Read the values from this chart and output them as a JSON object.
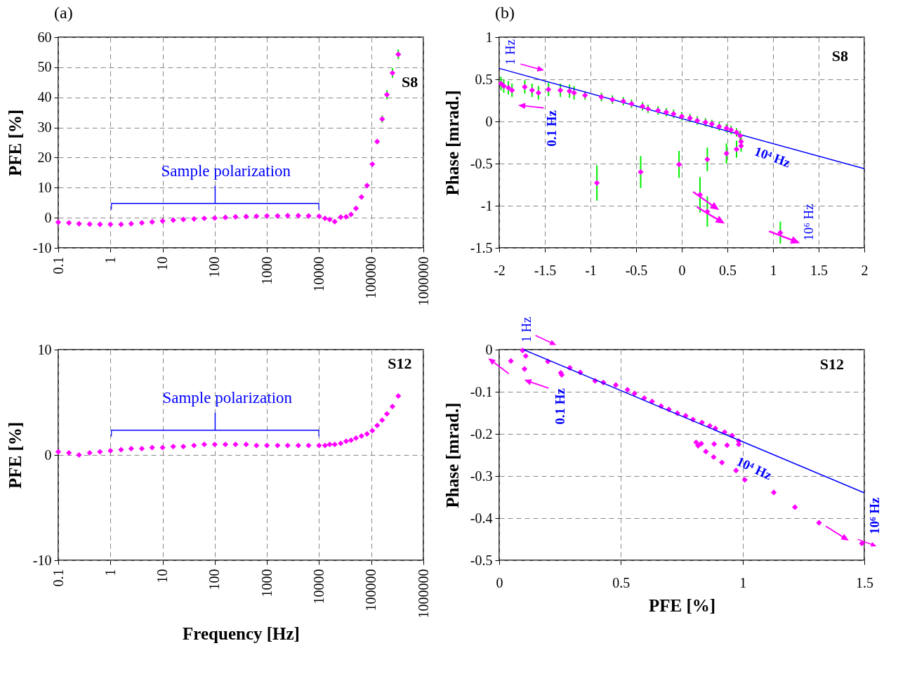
{
  "chart_data": [
    {
      "type": "scatter",
      "title": "(a)",
      "ylabel": "PFE [%]",
      "log": "x",
      "grid": true,
      "marker": "diamond",
      "xlim": [
        0.1,
        1000000
      ],
      "xticks": [
        0.1,
        1,
        10,
        100,
        1000,
        10000,
        100000,
        1000000
      ],
      "ylim": [
        -10,
        60
      ],
      "yticks": [
        -10,
        0,
        10,
        20,
        30,
        40,
        50,
        60
      ],
      "x": [
        0.1,
        0.16,
        0.25,
        0.4,
        0.63,
        1,
        1.6,
        2.5,
        4,
        6.3,
        10,
        16,
        25,
        40,
        63,
        100,
        160,
        250,
        400,
        630,
        1000,
        1600,
        2500,
        4000,
        6300,
        10000,
        13000,
        16000,
        20000,
        26000,
        33000,
        41000,
        51000,
        65000,
        83000,
        105000,
        130000,
        162000,
        200000,
        255000,
        330000
      ],
      "series": [
        {
          "color": "#ff00ff",
          "values": [
            -1.5,
            -1.7,
            -2.0,
            -2.1,
            -2.2,
            -2.2,
            -2.2,
            -2.0,
            -1.7,
            -1.4,
            -1.1,
            -0.8,
            -0.6,
            -0.4,
            -0.2,
            -0.1,
            0.1,
            0.3,
            0.4,
            0.5,
            0.6,
            0.6,
            0.7,
            0.7,
            0.6,
            0.5,
            -0.2,
            -0.6,
            -1.3,
            0.2,
            0.3,
            1.1,
            3.1,
            6.9,
            10.7,
            17.8,
            25.3,
            32.8,
            40.9,
            48.1,
            54.3
          ],
          "errors": [
            null,
            null,
            null,
            null,
            null,
            null,
            null,
            null,
            null,
            null,
            null,
            null,
            null,
            null,
            null,
            null,
            null,
            null,
            null,
            null,
            null,
            null,
            null,
            null,
            null,
            null,
            null,
            null,
            null,
            null,
            null,
            null,
            null,
            null,
            null,
            null,
            null,
            1.2,
            1.5,
            1.6,
            1.6
          ]
        }
      ],
      "annotations": [
        "S8",
        "Sample polarization"
      ]
    },
    {
      "type": "scatter",
      "title": "(b)",
      "ylabel": "Phase [mrad.]",
      "grid": true,
      "marker": "diamond",
      "xlim": [
        -2,
        2
      ],
      "xticks": [
        -2,
        -1.5,
        -1,
        -0.5,
        0,
        0.5,
        1,
        1.5,
        2
      ],
      "ylim": [
        -1.5,
        1
      ],
      "yticks": [
        -1.5,
        -1,
        -0.5,
        0,
        0.5,
        1
      ],
      "series": [
        {
          "color": "#ff00ff",
          "x": [
            -1.98,
            -1.95,
            -1.9,
            -1.86,
            -1.72,
            -1.64,
            -1.57,
            -1.46,
            -1.33,
            -1.23,
            -1.18,
            -1.06,
            -0.88,
            -0.76,
            -0.64,
            -0.55,
            -0.43,
            -0.37,
            -0.26,
            -0.17,
            -0.09,
            0.0,
            0.09,
            0.17,
            0.26,
            0.33,
            0.41,
            0.49,
            0.54,
            0.6,
            0.64,
            0.65,
            0.65,
            0.6,
            0.49,
            0.28,
            -0.03,
            -0.45,
            -0.93,
            0.2,
            0.28,
            1.08
          ],
          "values": [
            0.45,
            0.42,
            0.4,
            0.37,
            0.41,
            0.37,
            0.34,
            0.38,
            0.37,
            0.36,
            0.34,
            0.31,
            0.29,
            0.26,
            0.24,
            0.21,
            0.18,
            0.15,
            0.13,
            0.11,
            0.09,
            0.06,
            0.04,
            0.01,
            -0.01,
            -0.03,
            -0.06,
            -0.08,
            -0.1,
            -0.13,
            -0.17,
            -0.24,
            -0.29,
            -0.33,
            -0.38,
            -0.45,
            -0.51,
            -0.6,
            -0.73,
            -0.87,
            -1.07,
            -1.32
          ],
          "errors": [
            0.08,
            0.08,
            0.08,
            0.08,
            0.08,
            0.08,
            0.08,
            0.08,
            0.08,
            0.08,
            0.08,
            0.05,
            0.05,
            0.05,
            0.05,
            0.05,
            0.05,
            0.05,
            0.05,
            0.05,
            0.05,
            0.05,
            0.05,
            0.05,
            0.05,
            0.05,
            0.05,
            0.05,
            0.05,
            0.05,
            0.06,
            0.06,
            0.07,
            0.1,
            0.12,
            0.14,
            0.16,
            0.19,
            0.21,
            0.21,
            0.18,
            0.13
          ]
        },
        {
          "type": "line",
          "marker": "none",
          "color": "#0000ff",
          "x": [
            -2,
            2
          ],
          "values": [
            0.63,
            -0.56
          ]
        }
      ],
      "annotations": [
        "S8",
        "1 Hz",
        "0.1 Hz",
        "10⁴ Hz",
        "10⁶ Hz"
      ]
    },
    {
      "type": "scatter",
      "xlabel": "Frequency [Hz]",
      "ylabel": "PFE [%]",
      "log": "x",
      "grid": true,
      "marker": "diamond",
      "xlim": [
        0.1,
        1000000
      ],
      "xticks": [
        0.1,
        1,
        10,
        100,
        1000,
        10000,
        100000,
        1000000
      ],
      "ylim": [
        -10,
        10
      ],
      "yticks": [
        -10,
        0,
        10
      ],
      "x": [
        0.1,
        0.16,
        0.25,
        0.4,
        0.63,
        1,
        1.6,
        2.5,
        4,
        6.3,
        10,
        16,
        25,
        40,
        63,
        100,
        160,
        250,
        400,
        630,
        1000,
        1600,
        2500,
        4000,
        6300,
        10000,
        13000,
        16000,
        20000,
        26000,
        33000,
        41000,
        51000,
        65000,
        83000,
        105000,
        130000,
        162000,
        200000,
        255000,
        330000
      ],
      "series": [
        {
          "color": "#ff00ff",
          "values": [
            0.3,
            0.2,
            0.0,
            0.2,
            0.3,
            0.4,
            0.5,
            0.6,
            0.6,
            0.7,
            0.7,
            0.8,
            0.8,
            0.9,
            1.0,
            1.0,
            1.0,
            1.0,
            1.0,
            0.9,
            0.9,
            0.9,
            0.9,
            0.9,
            0.9,
            0.9,
            0.9,
            1.0,
            1.0,
            1.1,
            1.3,
            1.4,
            1.6,
            1.8,
            2.0,
            2.3,
            2.8,
            3.3,
            3.9,
            4.6,
            5.6
          ]
        }
      ],
      "annotations": [
        "S12",
        "Sample polarization"
      ]
    },
    {
      "type": "scatter",
      "xlabel": "PFE [%]",
      "ylabel": "Phase [mrad.]",
      "grid": true,
      "marker": "diamond",
      "xlim": [
        0,
        1.5
      ],
      "xticks": [
        0,
        0.5,
        1,
        1.5
      ],
      "ylim": [
        -0.5,
        0
      ],
      "yticks": [
        -0.5,
        -0.4,
        -0.3,
        -0.2,
        -0.1,
        0
      ],
      "series": [
        {
          "color": "#ff00ff",
          "x": [
            0.096,
            0.109,
            0.048,
            0.104,
            0.2,
            0.253,
            0.257,
            0.29,
            0.333,
            0.394,
            0.428,
            0.479,
            0.527,
            0.556,
            0.596,
            0.628,
            0.665,
            0.697,
            0.732,
            0.766,
            0.796,
            0.833,
            0.865,
            0.888,
            0.926,
            0.957,
            0.984,
            0.984,
            0.936,
            0.883,
            0.83,
            0.809,
            0.817,
            0.849,
            0.881,
            0.915,
            0.973,
            1.009,
            1.128,
            1.215,
            1.314,
            1.49
          ],
          "values": [
            -0.002,
            -0.015,
            -0.027,
            -0.046,
            -0.028,
            -0.055,
            -0.06,
            -0.043,
            -0.054,
            -0.074,
            -0.078,
            -0.084,
            -0.095,
            -0.104,
            -0.115,
            -0.123,
            -0.134,
            -0.142,
            -0.151,
            -0.157,
            -0.166,
            -0.173,
            -0.181,
            -0.187,
            -0.196,
            -0.204,
            -0.217,
            -0.225,
            -0.227,
            -0.224,
            -0.223,
            -0.22,
            -0.228,
            -0.242,
            -0.255,
            -0.268,
            -0.287,
            -0.309,
            -0.339,
            -0.374,
            -0.411,
            -0.46
          ]
        },
        {
          "type": "line",
          "marker": "none",
          "color": "#0000ff",
          "x": [
            0.1,
            1.5
          ],
          "values": [
            0,
            -0.34
          ]
        }
      ],
      "annotations": [
        "S12",
        "1 Hz",
        "0.1 Hz",
        "10⁴ Hz",
        "10⁶ Hz"
      ]
    }
  ]
}
